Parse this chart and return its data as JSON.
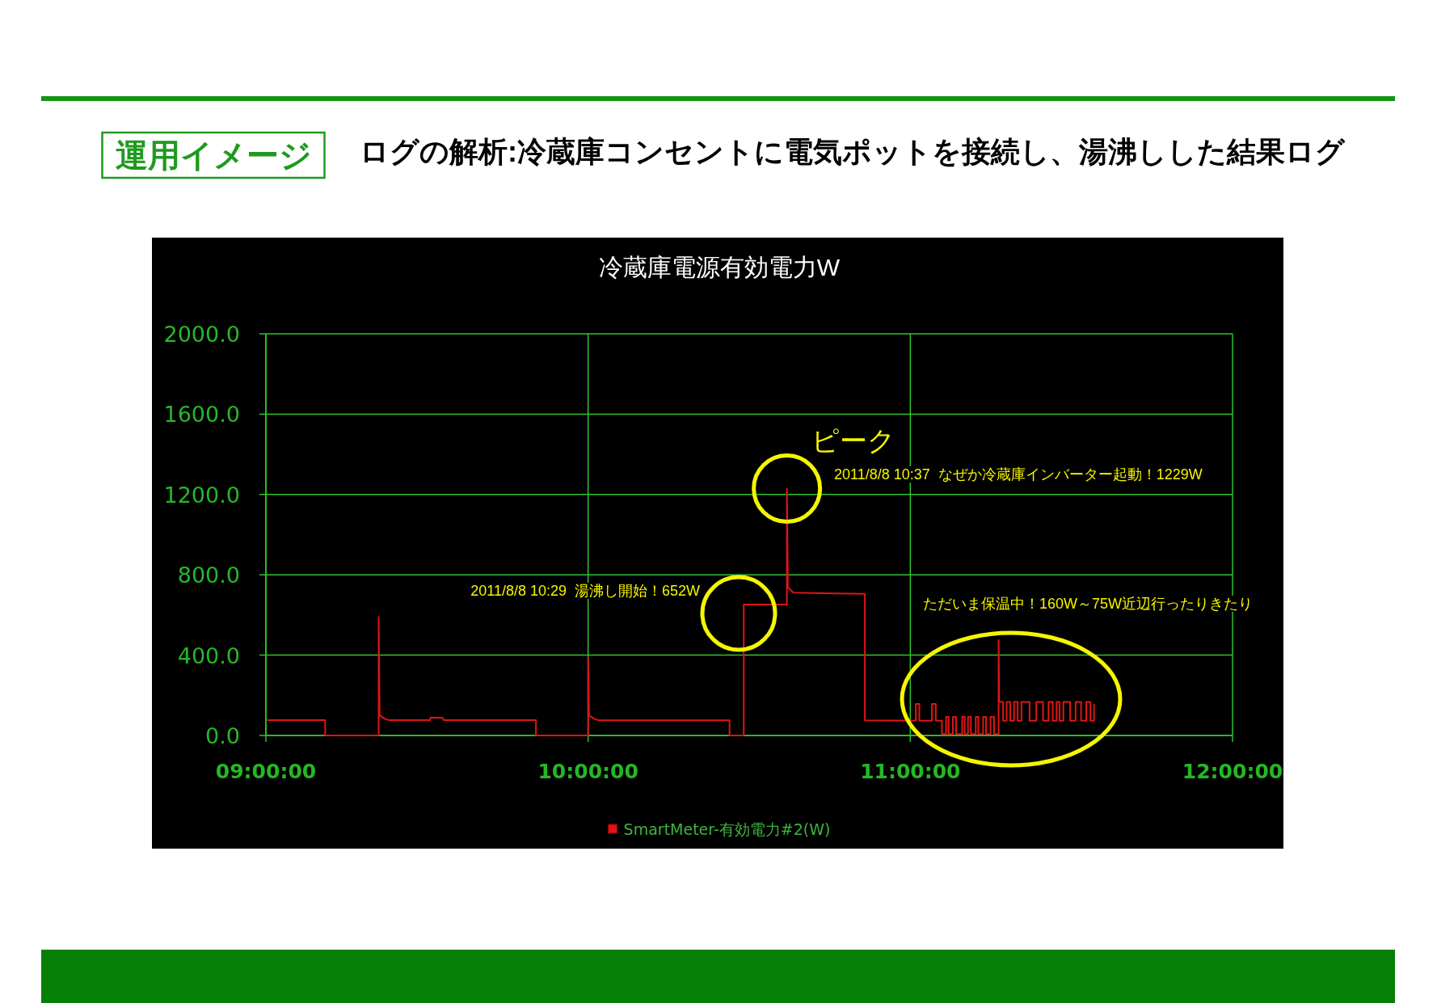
{
  "chart_data": {
    "type": "line",
    "title": "ログの解析:冷蔵庫コンセントに電気ポットを接続し、湯沸しした結果ログ",
    "subtitle": "冷蔵庫電源有効電力W",
    "annotations": [
      "運用イメージ",
      "2011/8/8 10:29  湯沸し開始！652W",
      {
        "text": "ピーク",
        "x": 10.617,
        "y": 1229
      },
      "2011/8/8 10:37  なぜか冷蔵庫インバーター起動！1229W",
      "ただいま保温中！160W～75W近辺行ったりきたり"
    ],
    "x": [
      9.006,
      9.184,
      9.184,
      9.35,
      9.35,
      9.353,
      9.37,
      9.383,
      9.509,
      9.512,
      9.549,
      9.552,
      9.838,
      9.838,
      10,
      10,
      10.003,
      10.02,
      10.035,
      10.439,
      10.439,
      10.483,
      10.483,
      10.617,
      10.617,
      10.62,
      10.637,
      10.859,
      10.859,
      11.017,
      11.017,
      11.028,
      11.028,
      11.067,
      11.067,
      11.079,
      11.079,
      11.098,
      11.098,
      11.111,
      11.111,
      11.119,
      11.119,
      11.132,
      11.132,
      11.142,
      11.142,
      11.161,
      11.161,
      11.169,
      11.169,
      11.179,
      11.179,
      11.188,
      11.188,
      11.203,
      11.203,
      11.211,
      11.211,
      11.226,
      11.226,
      11.235,
      11.235,
      11.249,
      11.249,
      11.26,
      11.26,
      11.274,
      11.274,
      11.276,
      11.288,
      11.288,
      11.299,
      11.299,
      11.31,
      11.31,
      11.322,
      11.322,
      11.333,
      11.333,
      11.345,
      11.345,
      11.37,
      11.37,
      11.391,
      11.391,
      11.412,
      11.412,
      11.429,
      11.429,
      11.442,
      11.442,
      11.454,
      11.454,
      11.463,
      11.463,
      11.475,
      11.475,
      11.496,
      11.496,
      11.513,
      11.513,
      11.53,
      11.53,
      11.546,
      11.546,
      11.559,
      11.559,
      11.57,
      11.57
    ],
    "series": [
      {
        "name": "SmartMeter-有効電力#2(W)",
        "color": "#e01414",
        "values": [
          76,
          76,
          0,
          0,
          591,
          100,
          82,
          76,
          76,
          90,
          88,
          76,
          76,
          0,
          0,
          383,
          100,
          82,
          75,
          75,
          0,
          0,
          652,
          652,
          1229,
          738,
          711,
          705,
          75,
          73,
          157,
          157,
          73,
          73,
          157,
          157,
          73,
          73,
          7,
          7,
          93,
          93,
          7,
          7,
          93,
          93,
          7,
          7,
          93,
          93,
          7,
          7,
          93,
          93,
          7,
          7,
          93,
          93,
          7,
          7,
          93,
          93,
          7,
          7,
          93,
          93,
          7,
          7,
          475,
          167,
          167,
          73,
          73,
          167,
          167,
          73,
          73,
          167,
          167,
          73,
          73,
          167,
          167,
          73,
          73,
          167,
          167,
          73,
          73,
          167,
          167,
          73,
          73,
          167,
          167,
          73,
          73,
          167,
          167,
          73,
          73,
          167,
          167,
          73,
          73,
          167,
          167,
          73,
          73,
          153
        ]
      }
    ],
    "xlim": [
      9,
      12
    ],
    "xticks": [
      {
        "value": 9,
        "label": "09:00:00"
      },
      {
        "value": 10,
        "label": "10:00:00"
      },
      {
        "value": 11,
        "label": "11:00:00"
      },
      {
        "value": 12,
        "label": "12:00:00"
      }
    ],
    "ylim": [
      0,
      2000
    ],
    "yticks": [
      {
        "value": 0,
        "label": "0.0"
      },
      {
        "value": 400,
        "label": "400.0"
      },
      {
        "value": 800,
        "label": "800.0"
      },
      {
        "value": 1200,
        "label": "1200.0"
      },
      {
        "value": 1600,
        "label": "1600.0"
      },
      {
        "value": 2000,
        "label": "2000.0"
      }
    ],
    "grid": true,
    "legend": "bottom"
  }
}
